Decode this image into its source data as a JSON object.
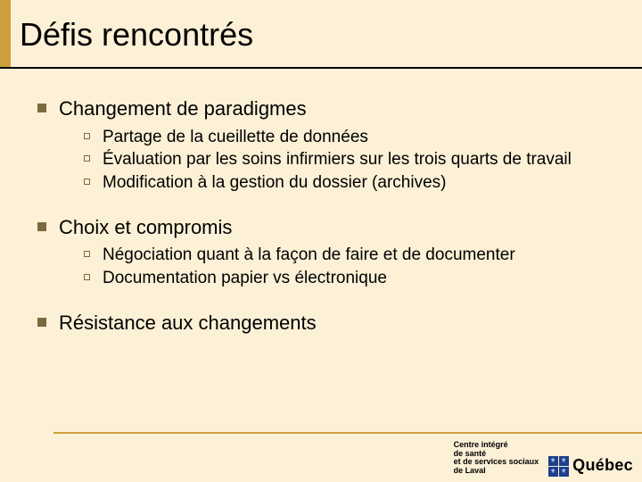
{
  "colors": {
    "background": "#fcf0d6",
    "title_text": "#000000",
    "accent": "#cf9e3d",
    "underline": "#000000",
    "bullet_primary": "#7c6a3f",
    "bullet_secondary": "#7c6a3f",
    "body_text": "#000000",
    "footer_line": "#cf9e3d",
    "logo_text": "#000000",
    "quebec_blue": "#1b3f8b",
    "white": "#ffffff"
  },
  "typography": {
    "title_size": 36,
    "lvl1_size": 22,
    "lvl2_size": 19,
    "logo_small_size": 9,
    "quebec_word_size": 18
  },
  "layout": {
    "bullet1_size": 10,
    "bullet2_size": 7,
    "flag_cell": 11
  },
  "title": "Défis rencontrés",
  "sections": [
    {
      "heading": "Changement de paradigmes",
      "items": [
        "Partage de la cueillette de données",
        "Évaluation par les soins infirmiers sur les trois quarts de travail",
        "Modification à la gestion du dossier (archives)"
      ]
    },
    {
      "heading": "Choix et compromis",
      "items": [
        "Négociation quant à la façon de faire et de documenter",
        "Documentation papier vs électronique"
      ]
    },
    {
      "heading": "Résistance aux changements",
      "items": []
    }
  ],
  "footer_logo": {
    "line1": "Centre intégré",
    "line2": "de santé",
    "line3": "et de services sociaux",
    "line4": "de Laval",
    "word": "Québec",
    "fleur": "⚜"
  }
}
